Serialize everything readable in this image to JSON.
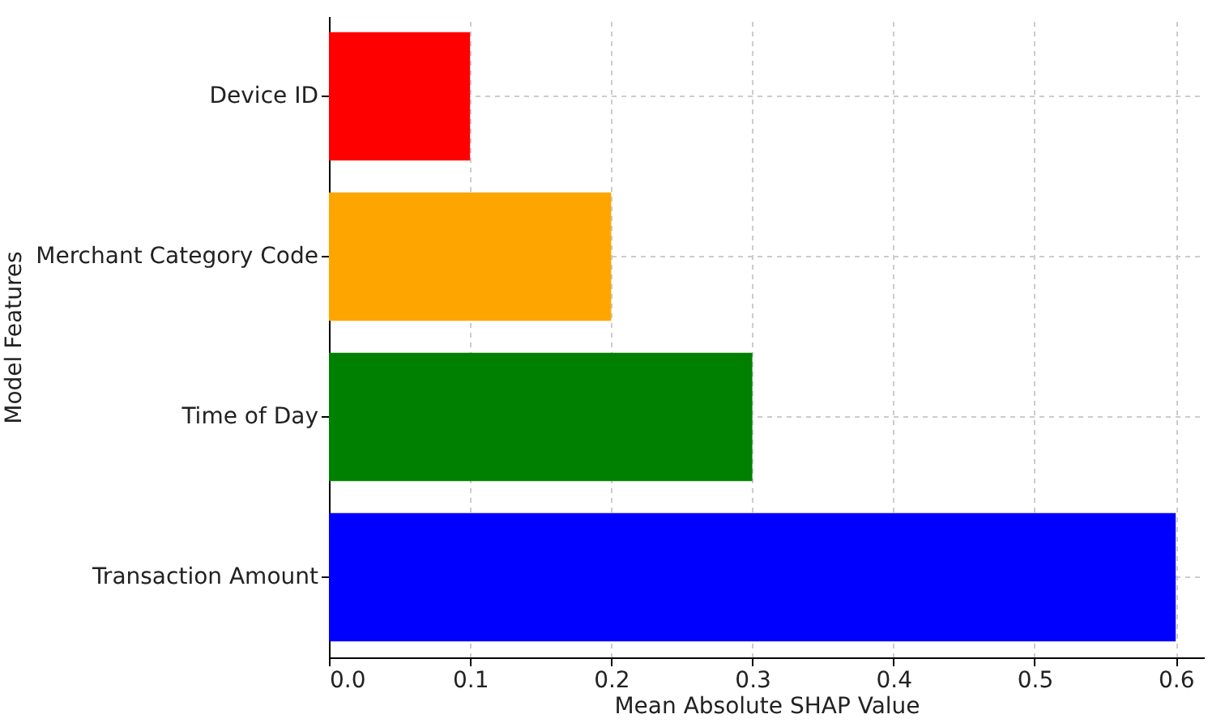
{
  "chart_data": {
    "type": "bar",
    "orientation": "horizontal",
    "xlabel": "Mean Absolute SHAP Value",
    "ylabel": "Model Features",
    "categories": [
      "Device ID",
      "Merchant Category Code",
      "Time of Day",
      "Transaction Amount"
    ],
    "values": [
      0.1,
      0.2,
      0.3,
      0.6
    ],
    "colors": [
      "#ff0000",
      "#ffa500",
      "#008000",
      "#0000ff"
    ],
    "xlim": [
      0,
      0.62
    ],
    "xticks": [
      {
        "value": 0,
        "label": "0.0"
      },
      0.1,
      0.2,
      0.3,
      0.4,
      0.5,
      0.6
    ],
    "grid": true
  }
}
